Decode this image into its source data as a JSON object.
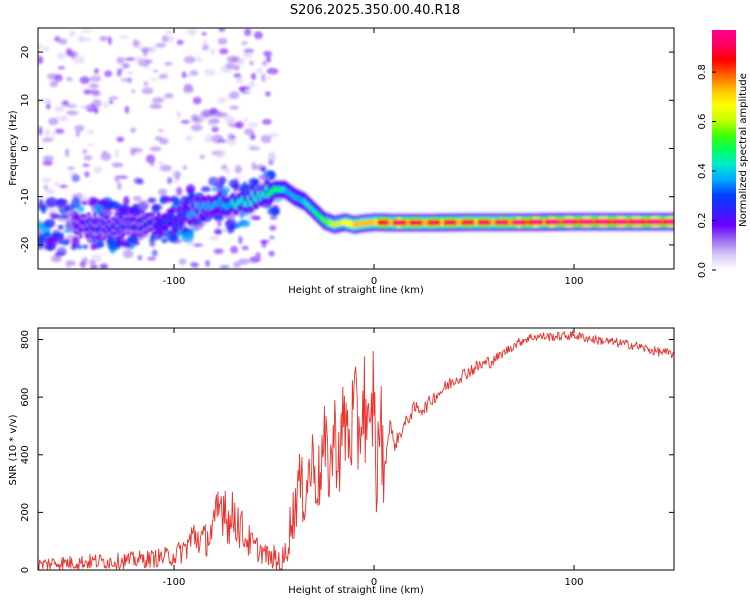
{
  "figure_title": "S206.2025.350.00.40.R18",
  "chart_data": [
    {
      "type": "heatmap",
      "panel": "spectrogram",
      "xlabel": "Height of straight line (km)",
      "ylabel": "Frequency (Hz)",
      "xlim": [
        -168,
        150
      ],
      "ylim": [
        -25,
        25
      ],
      "xticks": [
        -100,
        0,
        100
      ],
      "yticks": [
        -20,
        -10,
        0,
        10,
        20
      ],
      "colorbar": {
        "label": "Normalized spectral amplitude",
        "range": [
          0,
          0.97
        ],
        "ticks": [
          0.0,
          0.2,
          0.4,
          0.6,
          0.8
        ],
        "tick_labels": [
          "0.0",
          "0.2",
          "0.4",
          "0.6",
          "0.8"
        ],
        "colormap": [
          "#ffffff",
          "#d8c8f8",
          "#9c6cf0",
          "#6a00ff",
          "#3020ff",
          "#0040ff",
          "#00a8ff",
          "#00e8d0",
          "#00ff60",
          "#40ff00",
          "#c8ff00",
          "#ffff00",
          "#ffc000",
          "#ff6000",
          "#ff0000",
          "#ff0060",
          "#ff0090"
        ]
      },
      "ridge": {
        "x": [
          -150,
          -130,
          -110,
          -100,
          -90,
          -80,
          -70,
          -60,
          -50,
          -45,
          -40,
          -35,
          -30,
          -25,
          -20,
          -15,
          -10,
          -5,
          0,
          10,
          25,
          50,
          75,
          100,
          125,
          150
        ],
        "freq_hz": [
          -16,
          -16,
          -15.5,
          -15,
          -13,
          -11,
          -12,
          -10,
          -8.5,
          -8.5,
          -10,
          -11,
          -13,
          -15,
          -15.8,
          -15.3,
          -15.8,
          -15.5,
          -15.3,
          -15.4,
          -15.4,
          -15.3,
          -15.3,
          -15.2,
          -15.2,
          -15.2
        ],
        "amplitude": [
          0.2,
          0.25,
          0.25,
          0.3,
          0.35,
          0.35,
          0.4,
          0.4,
          0.5,
          0.4,
          0.35,
          0.4,
          0.45,
          0.55,
          0.6,
          0.65,
          0.7,
          0.7,
          0.7,
          0.85,
          0.8,
          0.8,
          0.85,
          0.9,
          0.9,
          0.9
        ]
      },
      "noise_region": {
        "x_range": [
          -168,
          -50
        ],
        "freq_range_hz": [
          -25,
          25
        ],
        "amplitude": [
          0.05,
          0.25
        ]
      }
    },
    {
      "type": "line",
      "panel": "snr",
      "xlabel": "Height of straight line (km)",
      "ylabel": "SNR (10 * v/v)",
      "xlim": [
        -168,
        150
      ],
      "ylim": [
        0,
        840
      ],
      "xticks": [
        -100,
        0,
        100
      ],
      "yticks": [
        0,
        200,
        400,
        600,
        800
      ],
      "color": "#e8322c",
      "series": [
        {
          "name": "SNR",
          "x": [
            -168,
            -160,
            -150,
            -140,
            -130,
            -120,
            -110,
            -100,
            -95,
            -90,
            -85,
            -80,
            -78,
            -75,
            -72,
            -70,
            -65,
            -60,
            -55,
            -50,
            -45,
            -42,
            -40,
            -38,
            -35,
            -32,
            -30,
            -28,
            -25,
            -22,
            -20,
            -17,
            -15,
            -12,
            -10,
            -8,
            -5,
            -2,
            0,
            1,
            3,
            5,
            8,
            10,
            15,
            20,
            25,
            30,
            40,
            50,
            60,
            70,
            75,
            80,
            90,
            100,
            110,
            120,
            130,
            140,
            150
          ],
          "values": [
            18,
            25,
            25,
            30,
            30,
            35,
            40,
            50,
            70,
            120,
            100,
            140,
            200,
            250,
            150,
            200,
            120,
            80,
            60,
            30,
            25,
            150,
            200,
            300,
            260,
            350,
            380,
            300,
            420,
            350,
            470,
            400,
            520,
            450,
            560,
            470,
            600,
            400,
            680,
            250,
            550,
            330,
            520,
            430,
            500,
            560,
            560,
            600,
            660,
            700,
            730,
            780,
            800,
            810,
            810,
            815,
            800,
            790,
            780,
            760,
            750
          ]
        }
      ]
    }
  ]
}
